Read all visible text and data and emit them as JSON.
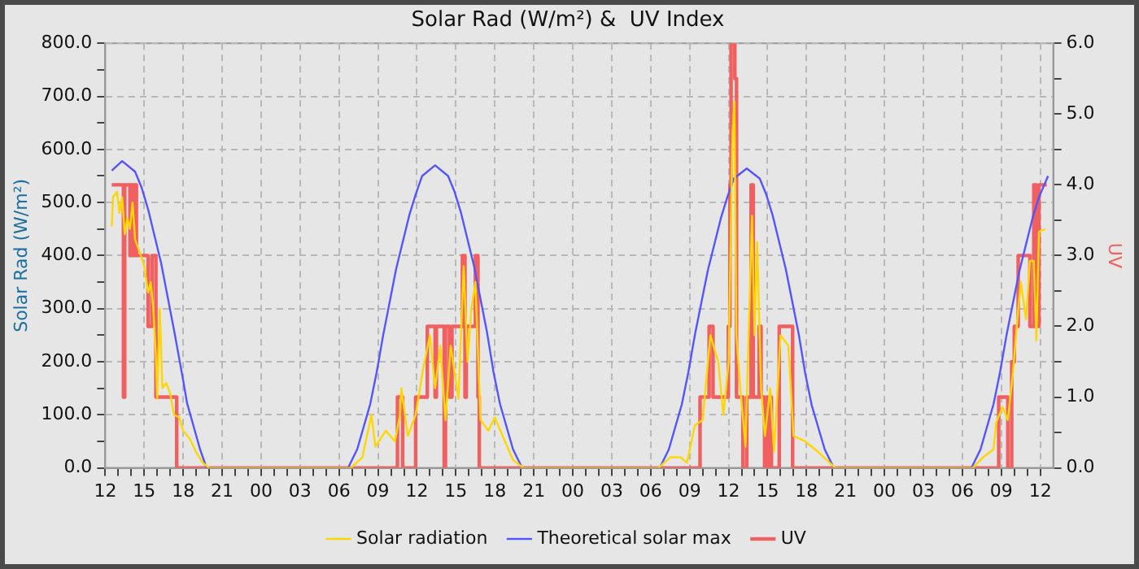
{
  "chart_data": {
    "type": "line",
    "title": "Solar Rad (W/m²) &  UV Index",
    "ylabel": "Solar Rad (W/m²)",
    "y2label": "UV",
    "xlim": [
      12,
      85
    ],
    "ylim": [
      0,
      800
    ],
    "y2lim": [
      0,
      6
    ],
    "xticks": [
      {
        "value": 12,
        "label": "12"
      },
      {
        "value": 13,
        "label": null
      },
      {
        "value": 14,
        "label": null
      },
      {
        "value": 15,
        "label": "15"
      },
      {
        "value": 16,
        "label": null
      },
      {
        "value": 17,
        "label": null
      },
      {
        "value": 18,
        "label": "18"
      },
      {
        "value": 19,
        "label": null
      },
      {
        "value": 20,
        "label": null
      },
      {
        "value": 21,
        "label": "21"
      },
      {
        "value": 22,
        "label": null
      },
      {
        "value": 23,
        "label": null
      },
      {
        "value": 24,
        "label": "00"
      },
      {
        "value": 25,
        "label": null
      },
      {
        "value": 26,
        "label": null
      },
      {
        "value": 27,
        "label": "03"
      },
      {
        "value": 28,
        "label": null
      },
      {
        "value": 29,
        "label": null
      },
      {
        "value": 30,
        "label": "06"
      },
      {
        "value": 31,
        "label": null
      },
      {
        "value": 32,
        "label": null
      },
      {
        "value": 33,
        "label": "09"
      },
      {
        "value": 34,
        "label": null
      },
      {
        "value": 35,
        "label": null
      },
      {
        "value": 36,
        "label": "12"
      },
      {
        "value": 37,
        "label": null
      },
      {
        "value": 38,
        "label": null
      },
      {
        "value": 39,
        "label": "15"
      },
      {
        "value": 40,
        "label": null
      },
      {
        "value": 41,
        "label": null
      },
      {
        "value": 42,
        "label": "18"
      },
      {
        "value": 43,
        "label": null
      },
      {
        "value": 44,
        "label": null
      },
      {
        "value": 45,
        "label": "21"
      },
      {
        "value": 46,
        "label": null
      },
      {
        "value": 47,
        "label": null
      },
      {
        "value": 48,
        "label": "00"
      },
      {
        "value": 49,
        "label": null
      },
      {
        "value": 50,
        "label": null
      },
      {
        "value": 51,
        "label": "03"
      },
      {
        "value": 52,
        "label": null
      },
      {
        "value": 53,
        "label": null
      },
      {
        "value": 54,
        "label": "06"
      },
      {
        "value": 55,
        "label": null
      },
      {
        "value": 56,
        "label": null
      },
      {
        "value": 57,
        "label": "09"
      },
      {
        "value": 58,
        "label": null
      },
      {
        "value": 59,
        "label": null
      },
      {
        "value": 60,
        "label": "12"
      },
      {
        "value": 61,
        "label": null
      },
      {
        "value": 62,
        "label": null
      },
      {
        "value": 63,
        "label": "15"
      },
      {
        "value": 64,
        "label": null
      },
      {
        "value": 65,
        "label": null
      },
      {
        "value": 66,
        "label": "18"
      },
      {
        "value": 67,
        "label": null
      },
      {
        "value": 68,
        "label": null
      },
      {
        "value": 69,
        "label": "21"
      },
      {
        "value": 70,
        "label": null
      },
      {
        "value": 71,
        "label": null
      },
      {
        "value": 72,
        "label": "00"
      },
      {
        "value": 73,
        "label": null
      },
      {
        "value": 74,
        "label": null
      },
      {
        "value": 75,
        "label": "03"
      },
      {
        "value": 76,
        "label": null
      },
      {
        "value": 77,
        "label": null
      },
      {
        "value": 78,
        "label": "06"
      },
      {
        "value": 79,
        "label": null
      },
      {
        "value": 80,
        "label": null
      },
      {
        "value": 81,
        "label": "09"
      },
      {
        "value": 82,
        "label": null
      },
      {
        "value": 83,
        "label": null
      },
      {
        "value": 84,
        "label": "12"
      }
    ],
    "yticks": [
      {
        "value": 0,
        "label": "0.0"
      },
      {
        "value": 50,
        "label": null
      },
      {
        "value": 100,
        "label": "100.0"
      },
      {
        "value": 150,
        "label": null
      },
      {
        "value": 200,
        "label": "200.0"
      },
      {
        "value": 250,
        "label": null
      },
      {
        "value": 300,
        "label": "300.0"
      },
      {
        "value": 350,
        "label": null
      },
      {
        "value": 400,
        "label": "400.0"
      },
      {
        "value": 450,
        "label": null
      },
      {
        "value": 500,
        "label": "500.0"
      },
      {
        "value": 550,
        "label": null
      },
      {
        "value": 600,
        "label": "600.0"
      },
      {
        "value": 650,
        "label": null
      },
      {
        "value": 700,
        "label": "700.0"
      },
      {
        "value": 750,
        "label": null
      },
      {
        "value": 800,
        "label": "800.0"
      }
    ],
    "y2ticks": [
      {
        "value": 0,
        "label": "0.0"
      },
      {
        "value": 0.5,
        "label": null
      },
      {
        "value": 1,
        "label": "1.0"
      },
      {
        "value": 1.5,
        "label": null
      },
      {
        "value": 2,
        "label": "2.0"
      },
      {
        "value": 2.5,
        "label": null
      },
      {
        "value": 3,
        "label": "3.0"
      },
      {
        "value": 3.5,
        "label": null
      },
      {
        "value": 4,
        "label": "4.0"
      },
      {
        "value": 4.5,
        "label": null
      },
      {
        "value": 5,
        "label": "5.0"
      },
      {
        "value": 5.5,
        "label": null
      },
      {
        "value": 6,
        "label": "6.0"
      }
    ],
    "grid": true,
    "legend": "bottom",
    "marker": "none",
    "line_style": "solid",
    "series": [
      {
        "name": "Solar radiation",
        "type": "line",
        "color": "#ffd700",
        "x": [
          12.5,
          12.6,
          12.9,
          13.1,
          13.3,
          13.5,
          13.7,
          13.9,
          14.1,
          14.3,
          14.6,
          15.0,
          15.3,
          15.5,
          15.7,
          15.9,
          16.0,
          16.2,
          16.4,
          16.7,
          17.0,
          17.3,
          17.7,
          18.0,
          18.5,
          19.0,
          19.5,
          20.0,
          30.9,
          31.8,
          32.5,
          32.8,
          33.6,
          34.3,
          34.7,
          34.8,
          35.3,
          35.9,
          36.5,
          37.0,
          37.4,
          37.8,
          38.2,
          38.6,
          39.2,
          39.6,
          39.9,
          40.2,
          40.5,
          40.9,
          41.5,
          42.0,
          42.6,
          43.4,
          44.2,
          54.6,
          55.5,
          56.3,
          56.8,
          57.4,
          58.0,
          58.6,
          59.2,
          59.6,
          60.0,
          60.3,
          60.45,
          60.6,
          60.9,
          61.3,
          61.8,
          62.0,
          62.2,
          62.5,
          62.8,
          63.2,
          63.5,
          64.0,
          64.6,
          65.0,
          65.9,
          66.9,
          68.2,
          78.8,
          79.6,
          80.4,
          80.6,
          81.1,
          81.5,
          81.9,
          82.2,
          82.5,
          82.9,
          83.2,
          83.5,
          83.7,
          83.9,
          84.4
        ],
        "values": [
          455,
          510,
          520,
          480,
          510,
          440,
          470,
          450,
          500,
          430,
          410,
          380,
          330,
          350,
          300,
          210,
          130,
          300,
          150,
          160,
          140,
          100,
          95,
          70,
          55,
          30,
          10,
          0,
          0,
          20,
          100,
          40,
          70,
          50,
          100,
          150,
          60,
          100,
          190,
          250,
          150,
          230,
          90,
          230,
          130,
          380,
          200,
          300,
          350,
          90,
          70,
          95,
          60,
          15,
          0,
          0,
          20,
          20,
          10,
          80,
          90,
          250,
          200,
          100,
          200,
          630,
          690,
          250,
          150,
          40,
          475,
          250,
          425,
          150,
          60,
          150,
          30,
          250,
          230,
          60,
          50,
          30,
          0,
          0,
          20,
          35,
          85,
          115,
          90,
          180,
          270,
          350,
          280,
          390,
          390,
          240,
          445,
          450
        ]
      },
      {
        "name": "Theoretical solar max",
        "type": "line",
        "color": "#5555ff",
        "x": [
          12.5,
          13.3,
          14.3,
          14.8,
          15.3,
          16.3,
          17.3,
          18.0,
          18.3,
          19.3,
          19.8,
          30.7,
          31.4,
          32.4,
          32.9,
          33.4,
          34.4,
          35.4,
          35.9,
          36.4,
          37.4,
          38.4,
          38.9,
          39.4,
          40.4,
          41.4,
          41.9,
          42.4,
          43.4,
          44.1,
          54.7,
          55.4,
          56.4,
          56.9,
          57.4,
          58.4,
          59.4,
          59.9,
          60.4,
          61.4,
          62.4,
          62.9,
          63.4,
          64.4,
          65.4,
          65.9,
          66.4,
          67.4,
          68.1,
          78.7,
          79.4,
          80.4,
          80.9,
          81.4,
          82.4,
          83.4,
          83.9,
          84.6
        ],
        "values": [
          560,
          578,
          558,
          528,
          487,
          386,
          259,
          165,
          122,
          35,
          0,
          0,
          35,
          120,
          180,
          250,
          375,
          475,
          515,
          550,
          570,
          550,
          520,
          480,
          380,
          255,
          180,
          120,
          35,
          0,
          0,
          35,
          120,
          180,
          250,
          372,
          470,
          510,
          545,
          564,
          545,
          515,
          475,
          375,
          252,
          178,
          118,
          35,
          0,
          0,
          35,
          120,
          180,
          250,
          372,
          470,
          510,
          550
        ]
      },
      {
        "name": "UV",
        "type": "step",
        "axis": "y2",
        "color": "#f06060",
        "x": [
          12.5,
          13.4,
          13.5,
          13.9,
          14.0,
          14.2,
          14.3,
          14.4,
          15.3,
          15.6,
          15.9,
          17.5,
          34.5,
          34.9,
          35.9,
          36.8,
          37.4,
          37.5,
          38.1,
          38.2,
          38.5,
          38.7,
          39.5,
          39.7,
          39.8,
          40.5,
          40.7,
          40.8,
          57.8,
          58.5,
          58.8,
          59.98,
          60.1,
          60.19,
          60.48,
          60.61,
          61.1,
          61.4,
          61.73,
          61.9,
          62.35,
          62.5,
          62.77,
          62.97,
          63.1,
          63.2,
          63.3,
          63.9,
          64.93,
          80.8,
          81.5,
          81.8,
          82.0,
          82.3,
          83.2,
          83.5,
          83.7,
          83.9,
          84.5
        ],
        "values": [
          4,
          1,
          4,
          3,
          4,
          3,
          4,
          3,
          2,
          3,
          1,
          0,
          1,
          0,
          1,
          2,
          1,
          2,
          0,
          2,
          1,
          2,
          3,
          1,
          2,
          3,
          1,
          0,
          1,
          2,
          1,
          2,
          4,
          6,
          5.5,
          1,
          0,
          1,
          4,
          1,
          2,
          1,
          0,
          1,
          0,
          1,
          0,
          2,
          0,
          1,
          0,
          1.5,
          2,
          3,
          2,
          4,
          2,
          4,
          4
        ]
      }
    ]
  }
}
